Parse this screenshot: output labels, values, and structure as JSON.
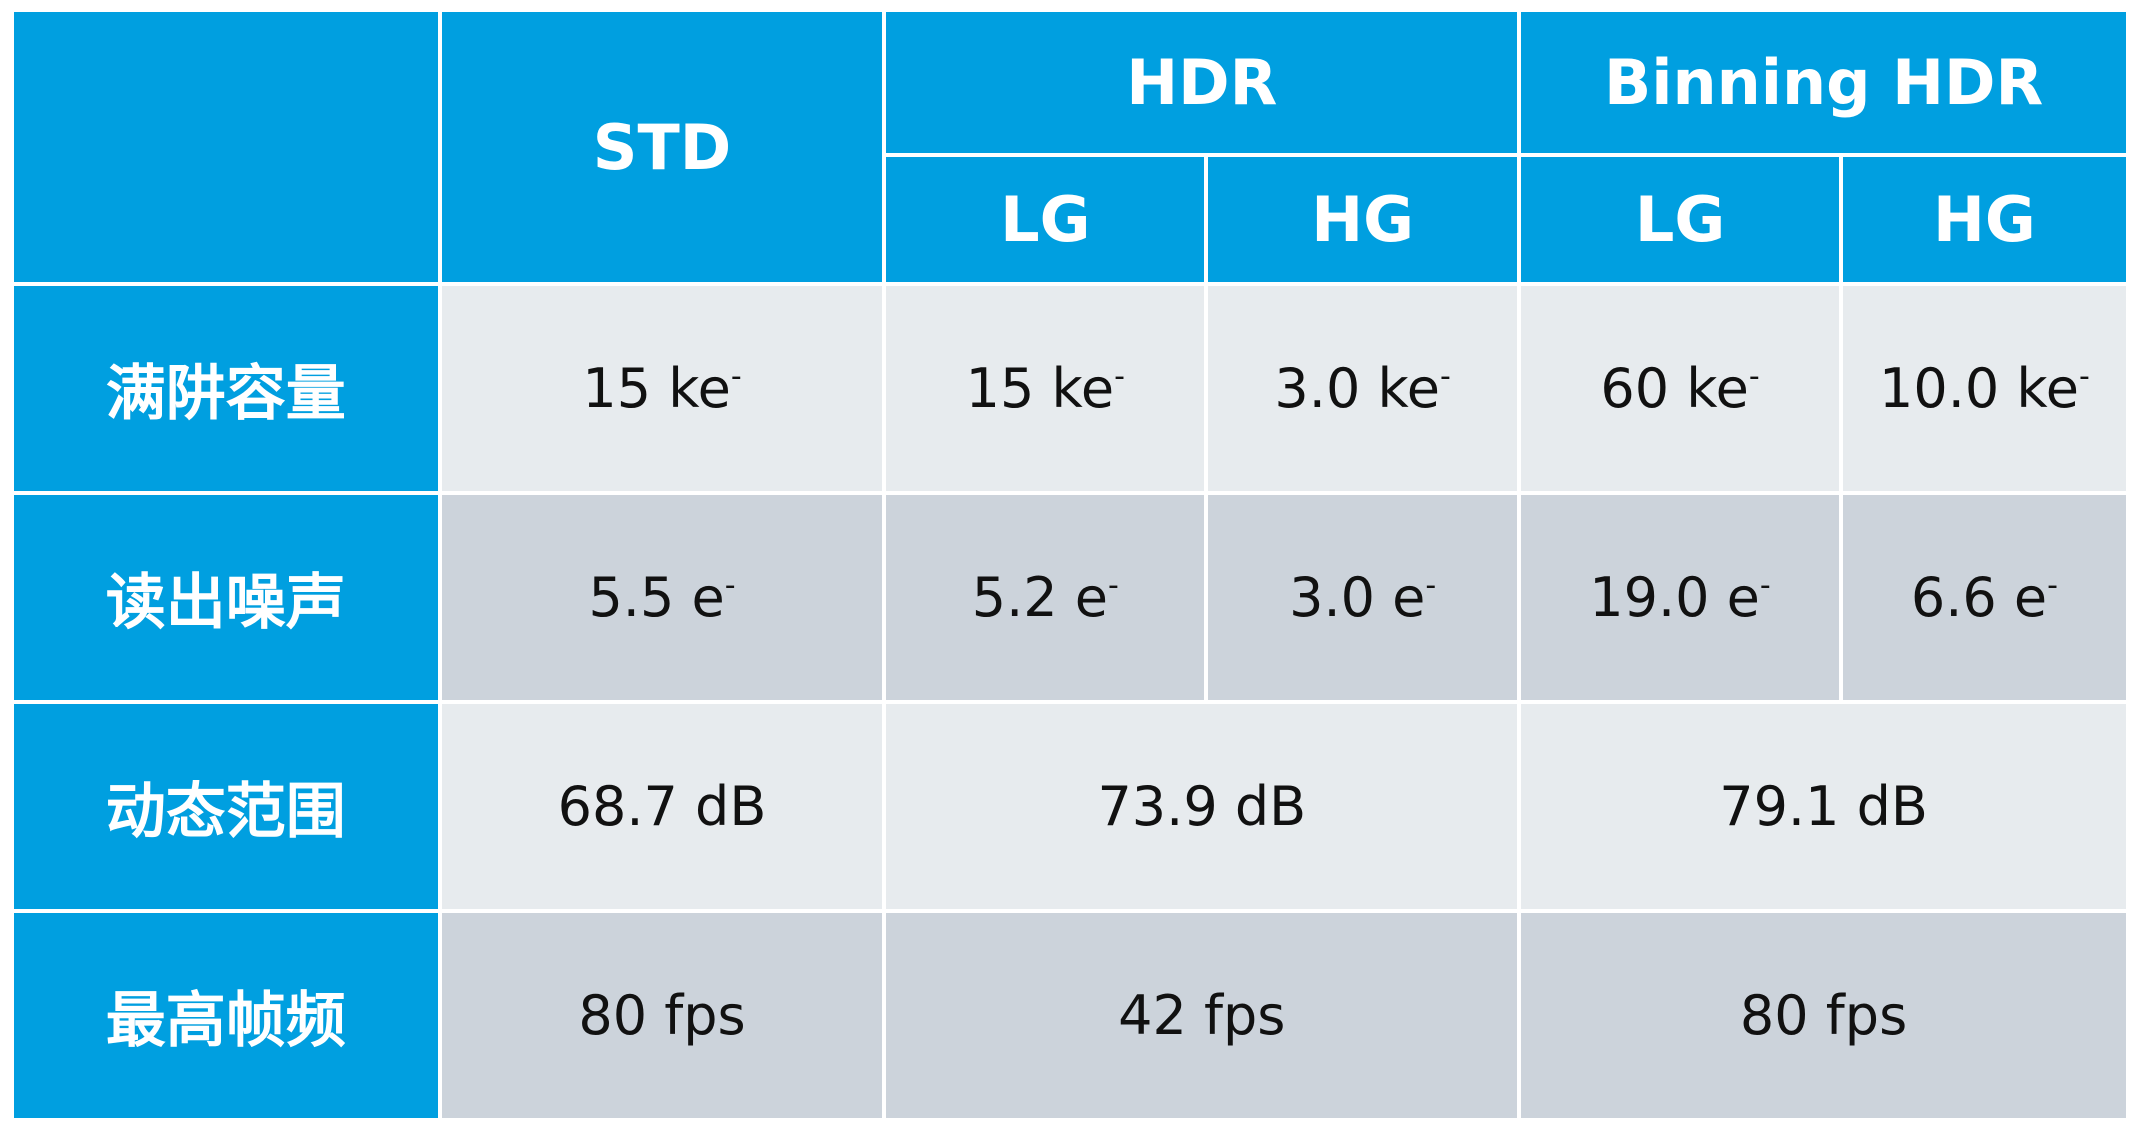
{
  "header": {
    "std": "STD",
    "hdr": "HDR",
    "binning_hdr": "Binning HDR",
    "lg": "LG",
    "hg": "HG"
  },
  "rows": [
    {
      "label": "满阱容量",
      "std": {
        "value": "15 ke",
        "unit_sup": "-"
      },
      "hdr_lg": {
        "value": "15 ke",
        "unit_sup": "-"
      },
      "hdr_hg": {
        "value": "3.0 ke",
        "unit_sup": "-"
      },
      "bin_lg": {
        "value": "60 ke",
        "unit_sup": "-"
      },
      "bin_hg": {
        "value": "10.0 ke",
        "unit_sup": "-"
      }
    },
    {
      "label": "读出噪声",
      "std": {
        "value": "5.5 e",
        "unit_sup": "-"
      },
      "hdr_lg": {
        "value": "5.2 e",
        "unit_sup": "-"
      },
      "hdr_hg": {
        "value": "3.0 e",
        "unit_sup": "-"
      },
      "bin_lg": {
        "value": "19.0 e",
        "unit_sup": "-"
      },
      "bin_hg": {
        "value": "6.6 e",
        "unit_sup": "-"
      }
    },
    {
      "label": "动态范围",
      "std": "68.7 dB",
      "hdr": "73.9 dB",
      "bin": "79.1 dB"
    },
    {
      "label": "最高帧频",
      "std": "80 fps",
      "hdr": "42 fps",
      "bin": "80 fps"
    }
  ],
  "colors": {
    "header_blue": "#009fe0",
    "row_light": "#e7ebee",
    "row_dark": "#ccd3db"
  }
}
